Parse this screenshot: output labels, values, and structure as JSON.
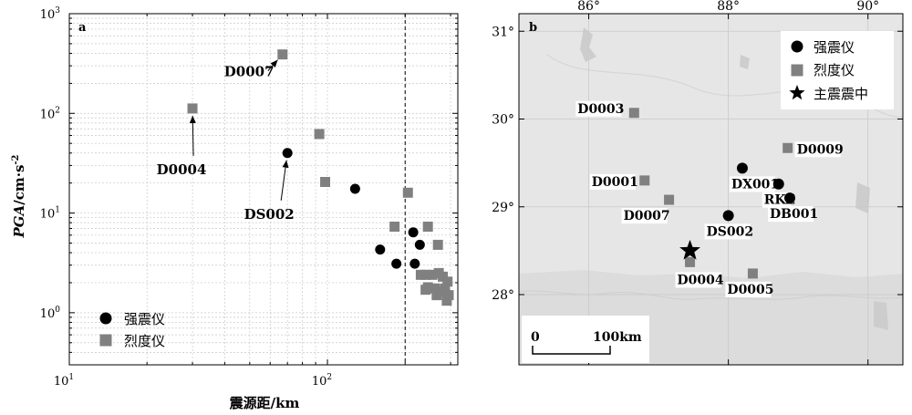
{
  "chart_data": [
    {
      "type": "scatter",
      "panel_label": "a",
      "xlabel": "震源距/km",
      "ylabel_main": "PGA",
      "ylabel_unit": "/cm·s",
      "ylabel_sup": "-2",
      "x_scale": "log",
      "y_scale": "log",
      "xlim": [
        10,
        320
      ],
      "ylim": [
        0.3,
        1000
      ],
      "x_ticks": [
        {
          "value": 10,
          "base": "10",
          "exp": "1"
        },
        {
          "value": 100,
          "base": "10",
          "exp": "2"
        }
      ],
      "y_ticks": [
        {
          "value": 1,
          "base": "10",
          "exp": "0"
        },
        {
          "value": 10,
          "base": "10",
          "exp": "1"
        },
        {
          "value": 100,
          "base": "10",
          "exp": "2"
        },
        {
          "value": 1000,
          "base": "10",
          "exp": "3"
        }
      ],
      "grid": true,
      "reference_line_x": 200,
      "legend": {
        "position": "bottom-left",
        "items": [
          "强震仪",
          "烈度仪"
        ]
      },
      "series": [
        {
          "name": "强震仪",
          "marker": "circle",
          "color": "#000000",
          "points": [
            {
              "x": 70,
              "y": 40
            },
            {
              "x": 128,
              "y": 17.5
            },
            {
              "x": 160,
              "y": 4.3
            },
            {
              "x": 185,
              "y": 3.1
            },
            {
              "x": 215,
              "y": 6.4
            },
            {
              "x": 228,
              "y": 4.8
            },
            {
              "x": 218,
              "y": 3.1
            },
            {
              "x": 290,
              "y": 1.55
            }
          ]
        },
        {
          "name": "烈度仪",
          "marker": "square",
          "color": "#808080",
          "points": [
            {
              "x": 30,
              "y": 112
            },
            {
              "x": 67,
              "y": 390
            },
            {
              "x": 93,
              "y": 62
            },
            {
              "x": 98,
              "y": 20.5
            },
            {
              "x": 205,
              "y": 16
            },
            {
              "x": 182,
              "y": 7.3
            },
            {
              "x": 245,
              "y": 7.3
            },
            {
              "x": 268,
              "y": 4.8
            },
            {
              "x": 240,
              "y": 2.4
            },
            {
              "x": 255,
              "y": 2.4
            },
            {
              "x": 270,
              "y": 2.5
            },
            {
              "x": 280,
              "y": 2.3
            },
            {
              "x": 292,
              "y": 2.05
            },
            {
              "x": 245,
              "y": 1.8
            },
            {
              "x": 260,
              "y": 1.75
            },
            {
              "x": 275,
              "y": 1.65
            },
            {
              "x": 285,
              "y": 1.75
            },
            {
              "x": 265,
              "y": 1.5
            },
            {
              "x": 295,
              "y": 1.5
            },
            {
              "x": 290,
              "y": 1.32
            },
            {
              "x": 240,
              "y": 1.7
            },
            {
              "x": 230,
              "y": 2.4
            }
          ]
        }
      ],
      "annotations": [
        {
          "text": "D0007",
          "x": 67,
          "y": 390
        },
        {
          "text": "D0004",
          "x": 30,
          "y": 112
        },
        {
          "text": "DS002",
          "x": 70,
          "y": 40
        }
      ]
    },
    {
      "type": "map",
      "panel_label": "b",
      "lon_range": [
        85.0,
        90.5
      ],
      "lat_range": [
        27.2,
        31.2
      ],
      "x_ticks": [
        {
          "value": 86,
          "label": "86°"
        },
        {
          "value": 88,
          "label": "88°"
        },
        {
          "value": 90,
          "label": "90°"
        }
      ],
      "y_ticks": [
        {
          "value": 28,
          "label": "28°"
        },
        {
          "value": 29,
          "label": "29°"
        },
        {
          "value": 30,
          "label": "30°"
        },
        {
          "value": 31,
          "label": "31°"
        }
      ],
      "legend": {
        "position": "top-right",
        "items": [
          {
            "label": "强震仪",
            "marker": "circle"
          },
          {
            "label": "烈度仪",
            "marker": "square"
          },
          {
            "label": "主震震中",
            "marker": "star"
          }
        ]
      },
      "scalebar": {
        "zero": "0",
        "end": "100km"
      },
      "stations": [
        {
          "name": "D0003",
          "type": "烈度仪",
          "lon": 86.65,
          "lat": 30.07
        },
        {
          "name": "D0009",
          "type": "烈度仪",
          "lon": 88.85,
          "lat": 29.67
        },
        {
          "name": "D0001",
          "type": "烈度仪",
          "lon": 86.8,
          "lat": 29.3
        },
        {
          "name": "DX001",
          "type": "强震仪",
          "lon": 88.2,
          "lat": 29.44
        },
        {
          "name": "RKZ",
          "type": "强震仪",
          "lon": 88.72,
          "lat": 29.26
        },
        {
          "name": "DB001",
          "type": "强震仪",
          "lon": 88.88,
          "lat": 29.1
        },
        {
          "name": "D0007",
          "type": "烈度仪",
          "lon": 87.15,
          "lat": 29.08
        },
        {
          "name": "DS002",
          "type": "强震仪",
          "lon": 88.0,
          "lat": 28.9
        },
        {
          "name": "D0004",
          "type": "烈度仪",
          "lon": 87.45,
          "lat": 28.37
        },
        {
          "name": "D0005",
          "type": "烈度仪",
          "lon": 88.35,
          "lat": 28.24
        }
      ],
      "epicenter": {
        "lon": 87.45,
        "lat": 28.5
      }
    }
  ]
}
